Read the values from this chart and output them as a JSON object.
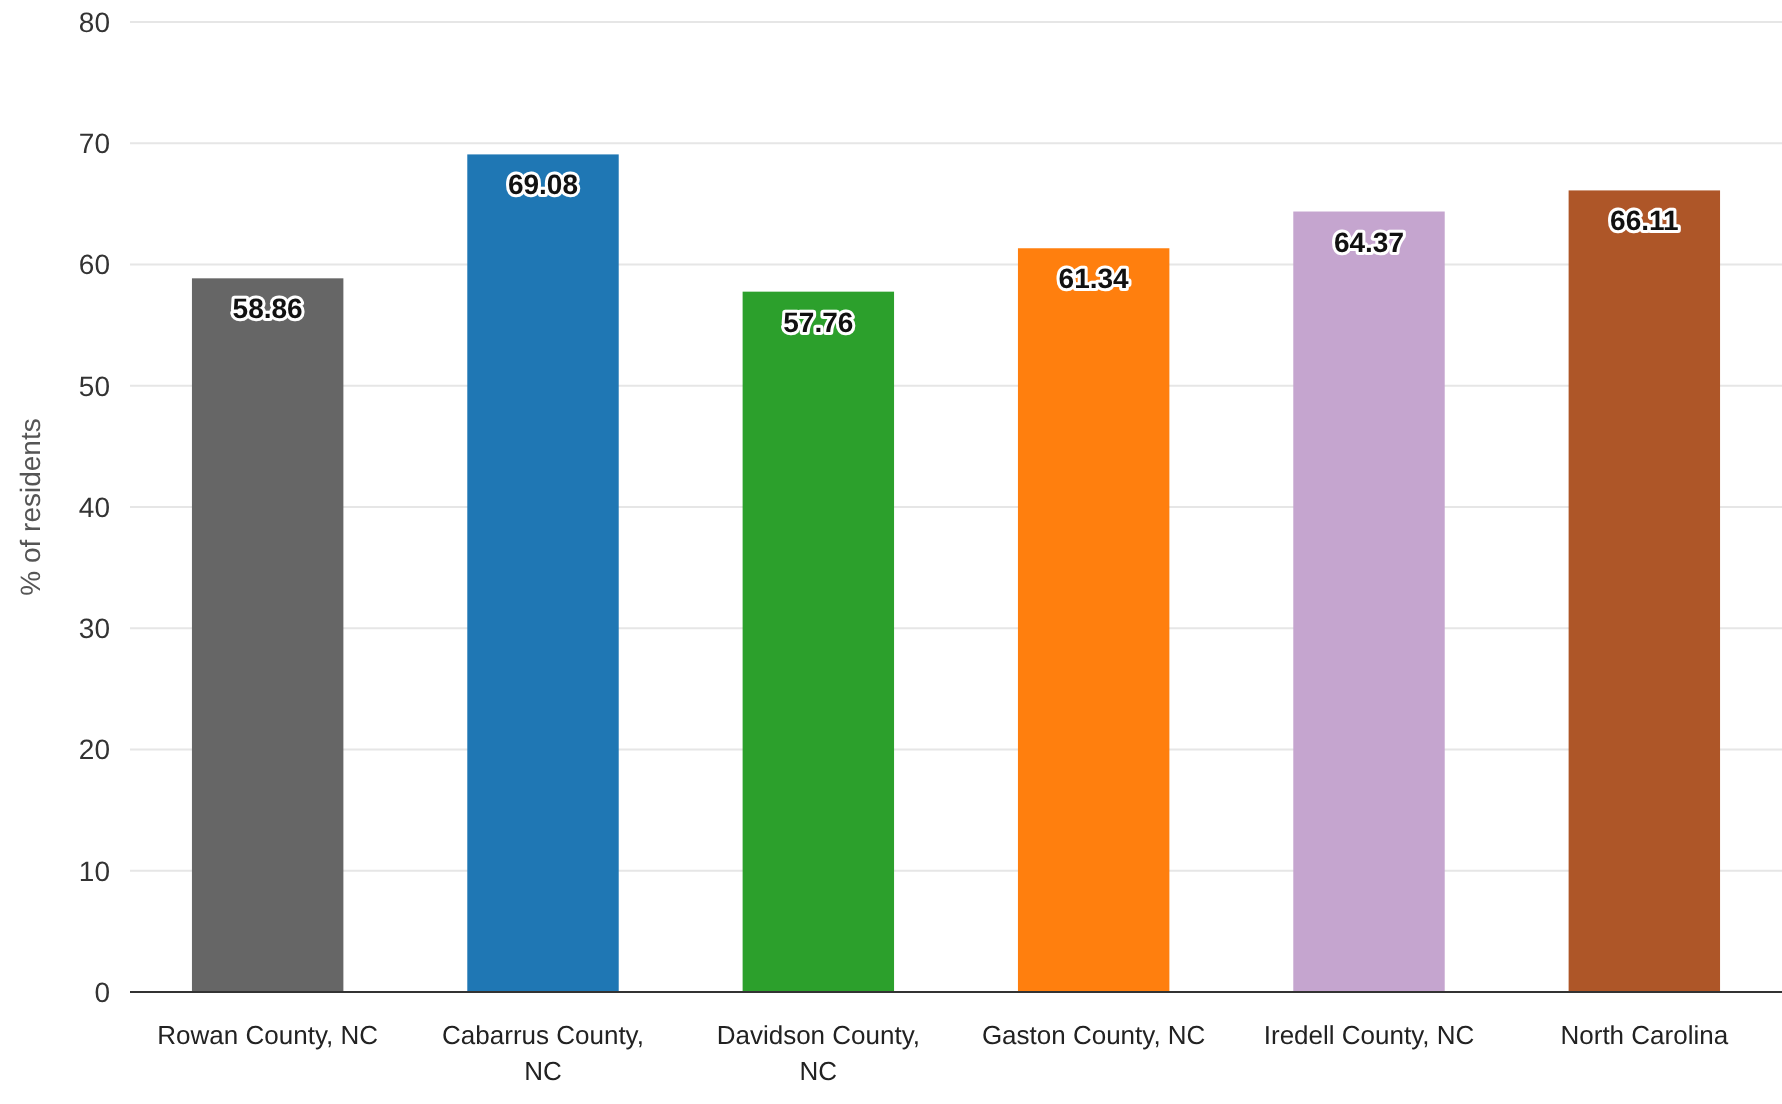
{
  "chart_data": {
    "type": "bar",
    "ylabel": "% of residents",
    "categories": [
      "Rowan County, NC",
      "Cabarrus County, NC",
      "Davidson County, NC",
      "Gaston County, NC",
      "Iredell County, NC",
      "North Carolina"
    ],
    "values": [
      58.86,
      69.08,
      57.76,
      61.34,
      64.37,
      66.11
    ],
    "colors": [
      "#666666",
      "#1f77b4",
      "#2ca02c",
      "#ff7f0e",
      "#c5a5cf",
      "#ae5628"
    ],
    "ylim": [
      0,
      80
    ],
    "yticks": [
      0,
      10,
      20,
      30,
      40,
      50,
      60,
      70,
      80
    ],
    "grid": "y",
    "data_labels": true
  }
}
